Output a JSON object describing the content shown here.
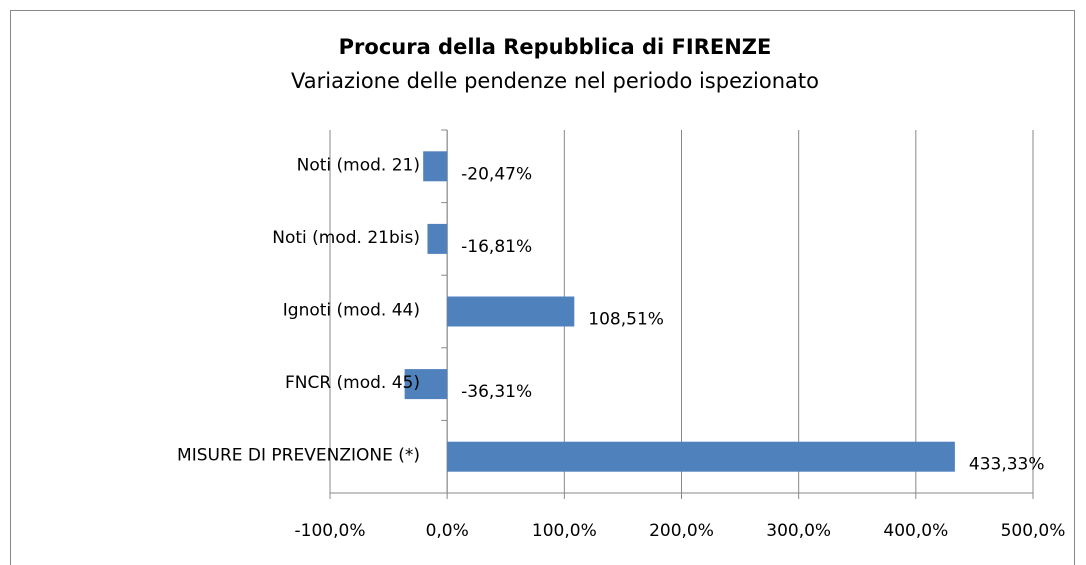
{
  "chart_data": {
    "type": "barh",
    "title": "Procura della Repubblica di FIRENZE",
    "subtitle": "Variazione delle pendenze nel periodo ispezionato",
    "categories": [
      "Noti (mod. 21)",
      "Noti (mod. 21bis)",
      "Ignoti (mod. 44)",
      "FNCR (mod. 45)",
      "MISURE DI PREVENZIONE (*)"
    ],
    "values": [
      -20.47,
      -16.81,
      108.51,
      -36.31,
      433.33
    ],
    "value_labels": [
      "-20,47%",
      "-16,81%",
      "108,51%",
      "-36,31%",
      "433,33%"
    ],
    "color": "#4f81bd",
    "xlim": [
      -100,
      500
    ],
    "xticks": [
      {
        "value": -100,
        "label": "-100,0%"
      },
      {
        "value": 0,
        "label": "0,0%"
      },
      {
        "value": 100,
        "label": "100,0%"
      },
      {
        "value": 200,
        "label": "200,0%"
      },
      {
        "value": 300,
        "label": "300,0%"
      },
      {
        "value": 400,
        "label": "400,0%"
      },
      {
        "value": 500,
        "label": "500,0%"
      }
    ],
    "grid": true
  }
}
